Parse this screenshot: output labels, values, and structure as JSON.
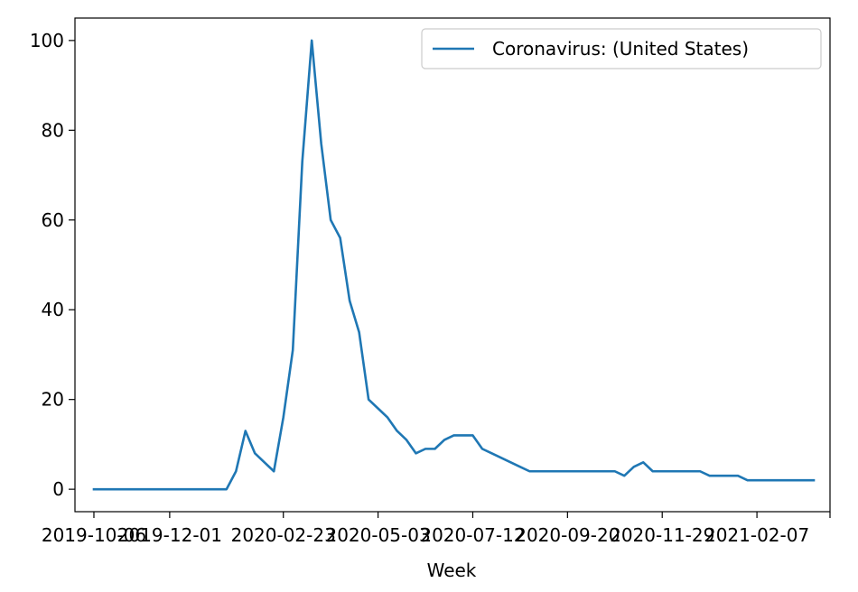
{
  "chart_data": {
    "type": "line",
    "title": "",
    "xlabel": "Week",
    "ylabel": "",
    "ylim": [
      -5,
      105
    ],
    "yticks": [
      0,
      20,
      40,
      60,
      80,
      100
    ],
    "xlim": [
      "2019-09-22",
      "2021-04-02"
    ],
    "xticks": [
      {
        "date": "2019-10-06",
        "label": "2019-10-06"
      },
      {
        "date": "2019-12-01",
        "label": "2019-12-01"
      },
      {
        "date": "2020-02-23",
        "label": "2020-02-23"
      },
      {
        "date": "2020-05-03",
        "label": "2020-05-03"
      },
      {
        "date": "2020-07-12",
        "label": "2020-07-12"
      },
      {
        "date": "2020-09-20",
        "label": "2020-09-20"
      },
      {
        "date": "2020-11-29",
        "label": "2020-11-29"
      },
      {
        "date": "2021-02-07",
        "label": "2021-02-07"
      },
      {
        "date": "2021-04-02",
        "label": ""
      }
    ],
    "grid": false,
    "legend_position": "top-right",
    "series": [
      {
        "name": "Coronavirus: (United States)",
        "color": "#1f77b4",
        "x": [
          "2019-10-06",
          "2019-10-13",
          "2019-10-20",
          "2019-10-27",
          "2019-11-03",
          "2019-11-10",
          "2019-11-17",
          "2019-11-24",
          "2019-12-01",
          "2019-12-08",
          "2019-12-15",
          "2019-12-22",
          "2019-12-29",
          "2020-01-05",
          "2020-01-12",
          "2020-01-19",
          "2020-01-26",
          "2020-02-02",
          "2020-02-09",
          "2020-02-16",
          "2020-02-23",
          "2020-03-01",
          "2020-03-08",
          "2020-03-15",
          "2020-03-22",
          "2020-03-29",
          "2020-04-05",
          "2020-04-12",
          "2020-04-19",
          "2020-04-26",
          "2020-05-03",
          "2020-05-10",
          "2020-05-17",
          "2020-05-24",
          "2020-05-31",
          "2020-06-07",
          "2020-06-14",
          "2020-06-21",
          "2020-06-28",
          "2020-07-05",
          "2020-07-12",
          "2020-07-19",
          "2020-07-26",
          "2020-08-02",
          "2020-08-09",
          "2020-08-16",
          "2020-08-23",
          "2020-08-30",
          "2020-09-06",
          "2020-09-13",
          "2020-09-20",
          "2020-09-27",
          "2020-10-04",
          "2020-10-11",
          "2020-10-18",
          "2020-10-25",
          "2020-11-01",
          "2020-11-08",
          "2020-11-15",
          "2020-11-22",
          "2020-11-29",
          "2020-12-06",
          "2020-12-13",
          "2020-12-20",
          "2020-12-27",
          "2021-01-03",
          "2021-01-10",
          "2021-01-17",
          "2021-01-24",
          "2021-01-31",
          "2021-02-07",
          "2021-02-14",
          "2021-02-21",
          "2021-02-28",
          "2021-03-07",
          "2021-03-14",
          "2021-03-21"
        ],
        "y": [
          0,
          0,
          0,
          0,
          0,
          0,
          0,
          0,
          0,
          0,
          0,
          0,
          0,
          0,
          0,
          4,
          13,
          8,
          6,
          4,
          16,
          31,
          73,
          100,
          77,
          60,
          56,
          42,
          35,
          20,
          18,
          16,
          13,
          11,
          8,
          9,
          9,
          11,
          12,
          12,
          12,
          9,
          8,
          7,
          6,
          5,
          4,
          4,
          4,
          4,
          4,
          4,
          4,
          4,
          4,
          4,
          3,
          5,
          6,
          4,
          4,
          4,
          4,
          4,
          4,
          3,
          3,
          3,
          3,
          2,
          2,
          2,
          2,
          2,
          2,
          2,
          2
        ]
      }
    ]
  }
}
